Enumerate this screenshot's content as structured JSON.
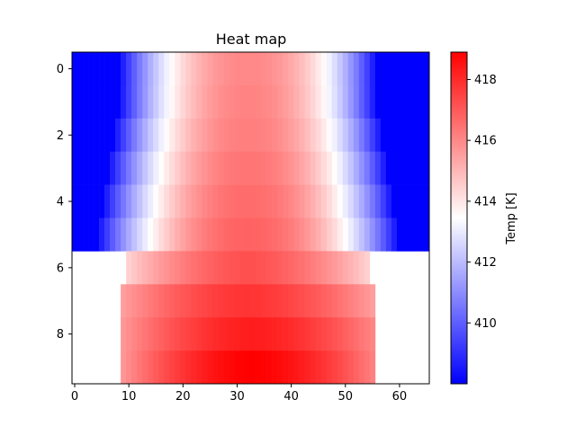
{
  "chart_data": {
    "type": "heatmap",
    "title": "Heat map",
    "xlabel": "",
    "ylabel": "",
    "xlim": [
      -0.5,
      65.5
    ],
    "ylim": [
      9.5,
      -0.5
    ],
    "x_ticks": [
      0,
      10,
      20,
      30,
      40,
      50,
      60
    ],
    "y_ticks": [
      0,
      2,
      4,
      6,
      8
    ],
    "colormap": "bwr",
    "colors": {
      "low": "#0000ff",
      "mid": "#ffffff",
      "high": "#ff0000"
    },
    "colorbar": {
      "label": "Temp [K]",
      "min": 408.0,
      "max": 418.9,
      "ticks": [
        410,
        412,
        414,
        416,
        418
      ]
    },
    "rows": [
      {
        "y": 0,
        "x_start": 0,
        "x_end": 65,
        "edge_temp": 408.0,
        "center_temp": 416.0,
        "half_width": 24,
        "exponent": 2.2,
        "center_x": 32
      },
      {
        "y": 1,
        "x_start": 0,
        "x_end": 65,
        "edge_temp": 408.0,
        "center_temp": 416.1,
        "half_width": 24,
        "exponent": 2.2,
        "center_x": 32
      },
      {
        "y": 2,
        "x_start": 0,
        "x_end": 65,
        "edge_temp": 408.0,
        "center_temp": 416.2,
        "half_width": 25,
        "exponent": 2.2,
        "center_x": 32
      },
      {
        "y": 3,
        "x_start": 0,
        "x_end": 65,
        "edge_temp": 408.0,
        "center_temp": 416.4,
        "half_width": 26,
        "exponent": 2.2,
        "center_x": 32
      },
      {
        "y": 4,
        "x_start": 0,
        "x_end": 65,
        "edge_temp": 408.0,
        "center_temp": 416.6,
        "half_width": 27,
        "exponent": 2.2,
        "center_x": 32
      },
      {
        "y": 5,
        "x_start": 0,
        "x_end": 65,
        "edge_temp": 408.0,
        "center_temp": 416.8,
        "half_width": 28,
        "exponent": 2.2,
        "center_x": 32
      },
      {
        "y": 6,
        "x_start": 10,
        "x_end": 54,
        "edge_temp": 413.8,
        "center_temp": 417.2,
        "half_width": 25,
        "exponent": 1.7,
        "center_x": 32
      },
      {
        "y": 7,
        "x_start": 9,
        "x_end": 55,
        "edge_temp": 415.2,
        "center_temp": 417.8,
        "half_width": 25,
        "exponent": 1.7,
        "center_x": 32
      },
      {
        "y": 8,
        "x_start": 9,
        "x_end": 55,
        "edge_temp": 415.5,
        "center_temp": 418.3,
        "half_width": 25,
        "exponent": 1.7,
        "center_x": 33
      },
      {
        "y": 9,
        "x_start": 9,
        "x_end": 55,
        "edge_temp": 415.5,
        "center_temp": 418.9,
        "half_width": 25,
        "exponent": 1.7,
        "center_x": 33
      }
    ]
  }
}
